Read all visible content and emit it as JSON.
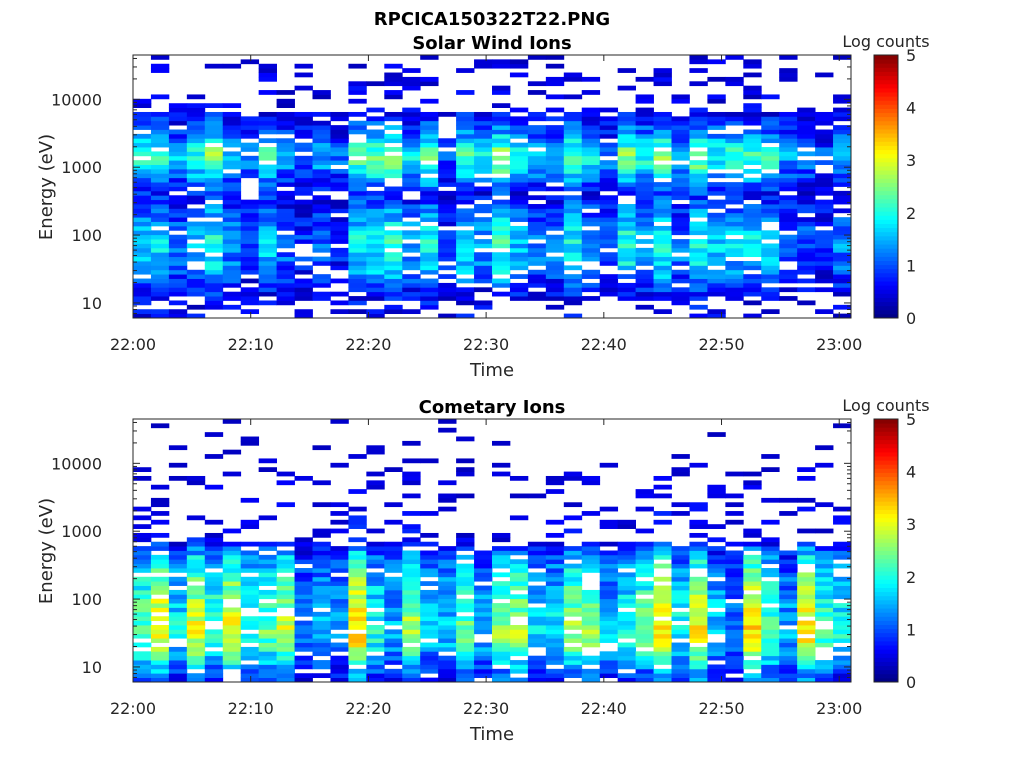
{
  "figure_title": "RPCICA150322T22.PNG",
  "chart_data": [
    {
      "type": "heatmap",
      "title": "Solar Wind Ions",
      "xlabel": "Time",
      "ylabel": "Energy (eV)",
      "x_ticks": [
        "22:00",
        "22:10",
        "22:20",
        "22:30",
        "22:40",
        "22:50",
        "23:00"
      ],
      "x_range_minutes": [
        0,
        61
      ],
      "y_scale": "log",
      "y_ticks": [
        "10",
        "100",
        "1000",
        "10000"
      ],
      "y_range": [
        6,
        45000
      ],
      "colorbar": {
        "label": "Log counts",
        "ticks": [
          "0",
          "1",
          "2",
          "3",
          "4",
          "5"
        ],
        "range": [
          0,
          5
        ],
        "colormap": "jet"
      },
      "time_columns": 40,
      "energy_bins": 60,
      "profile": [
        {
          "energy": 8,
          "value": 0.4
        },
        {
          "energy": 15,
          "value": 0.6
        },
        {
          "energy": 30,
          "value": 1.2
        },
        {
          "energy": 80,
          "value": 1.5
        },
        {
          "energy": 150,
          "value": 1.2
        },
        {
          "energy": 400,
          "value": 0.6
        },
        {
          "energy": 1000,
          "value": 1.6
        },
        {
          "energy": 1500,
          "value": 1.9
        },
        {
          "energy": 3000,
          "value": 1.1
        },
        {
          "energy": 8000,
          "value": 0.3
        },
        {
          "energy": 30000,
          "value": 0.2
        }
      ]
    },
    {
      "type": "heatmap",
      "title": "Cometary Ions",
      "xlabel": "Time",
      "ylabel": "Energy (eV)",
      "x_ticks": [
        "22:00",
        "22:10",
        "22:20",
        "22:30",
        "22:40",
        "22:50",
        "23:00"
      ],
      "x_range_minutes": [
        0,
        61
      ],
      "y_scale": "log",
      "y_ticks": [
        "10",
        "100",
        "1000",
        "10000"
      ],
      "y_range": [
        6,
        45000
      ],
      "colorbar": {
        "label": "Log counts",
        "ticks": [
          "0",
          "1",
          "2",
          "3",
          "4",
          "5"
        ],
        "range": [
          0,
          5
        ],
        "colormap": "jet"
      },
      "time_columns": 40,
      "energy_bins": 60,
      "profile": [
        {
          "energy": 8,
          "value": 1.0
        },
        {
          "energy": 12,
          "value": 1.6
        },
        {
          "energy": 30,
          "value": 2.4
        },
        {
          "energy": 60,
          "value": 2.2
        },
        {
          "energy": 150,
          "value": 1.9
        },
        {
          "energy": 400,
          "value": 1.4
        },
        {
          "energy": 800,
          "value": 0.4
        },
        {
          "energy": 2000,
          "value": 0.3
        },
        {
          "energy": 6000,
          "value": 0.2
        },
        {
          "energy": 20000,
          "value": 0.0
        }
      ]
    }
  ]
}
